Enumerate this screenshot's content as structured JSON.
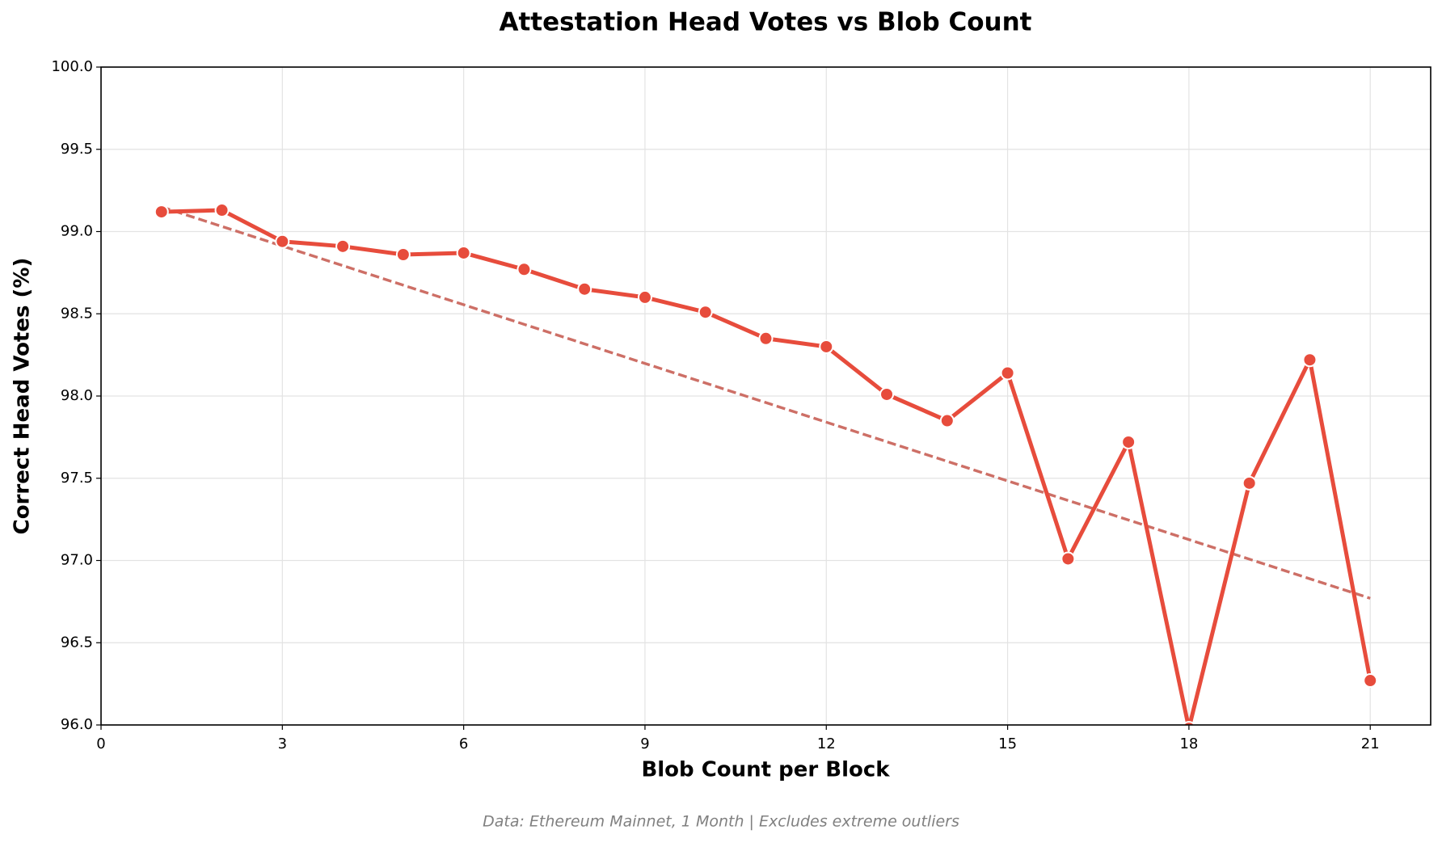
{
  "chart_data": {
    "type": "line",
    "title": "Attestation Head Votes vs Blob Count",
    "x_label": "Blob Count per Block",
    "y_label": "Correct Head Votes (%)",
    "footnote": "Data: Ethereum Mainnet, 1 Month | Excludes extreme outliers",
    "x": [
      1,
      2,
      3,
      4,
      5,
      6,
      7,
      8,
      9,
      10,
      11,
      12,
      13,
      14,
      15,
      16,
      17,
      18,
      19,
      20,
      21
    ],
    "series": [
      {
        "color": "#e74c3c",
        "values": [
          99.12,
          99.13,
          98.94,
          98.91,
          98.86,
          98.87,
          98.77,
          98.65,
          98.6,
          98.51,
          98.35,
          98.3,
          98.01,
          97.85,
          98.14,
          97.01,
          97.72,
          95.98,
          97.47,
          98.22,
          96.27
        ]
      }
    ],
    "trend": {
      "x": [
        1,
        21
      ],
      "values": [
        99.15,
        96.77
      ],
      "color": "#cd6f66"
    },
    "xlim": [
      0,
      22
    ],
    "ylim": [
      96,
      100
    ],
    "xticks": [
      0,
      3,
      6,
      9,
      12,
      15,
      18,
      21
    ],
    "yticks": [
      {
        "value": 96,
        "label": "96.0"
      },
      {
        "value": 96.5,
        "label": "96.5"
      },
      {
        "value": 97,
        "label": "97.0"
      },
      {
        "value": 97.5,
        "label": "97.5"
      },
      {
        "value": 98,
        "label": "98.0"
      },
      {
        "value": 98.5,
        "label": "98.5"
      },
      {
        "value": 99,
        "label": "99.0"
      },
      {
        "value": 99.5,
        "label": "99.5"
      },
      {
        "value": 100,
        "label": "100.0"
      }
    ],
    "grid": true
  }
}
